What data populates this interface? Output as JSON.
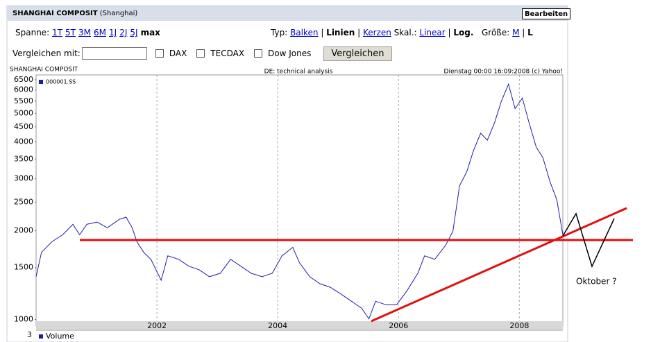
{
  "header": {
    "title": "SHANGHAI COMPOSIT",
    "exchange": "(Shanghai)",
    "edit_button": "Bearbeiten"
  },
  "controls": {
    "range_label": "Spanne:",
    "ranges": [
      "1T",
      "5T",
      "3M",
      "6M",
      "1J",
      "2J",
      "5J"
    ],
    "range_active": "max",
    "type_label": "Typ:",
    "types": [
      "Balken",
      "Linien",
      "Kerzen"
    ],
    "type_active": 1,
    "scale_label": "Skal.:",
    "scales": [
      "Linear",
      "Log."
    ],
    "scale_active": 1,
    "size_label": "Größe:",
    "sizes": [
      "M",
      "L"
    ],
    "size_active": 1,
    "compare_label": "Vergleichen mit:",
    "compare_options": [
      "DAX",
      "TECDAX",
      "Dow Jones"
    ],
    "compare_button": "Vergleichen"
  },
  "chart_data": {
    "type": "line",
    "title": "SHANGHAI COMPOSIT",
    "subtitle": "DE: technical analysis",
    "source": "Dienstag 00:00 16:09:2008 (c) Yahoo!",
    "log_y": true,
    "grid": true,
    "legend": "top-left",
    "xlim": [
      2000,
      2008.72
    ],
    "xticks": [
      2002,
      2004,
      2006,
      2008
    ],
    "ylim": [
      950,
      6750
    ],
    "yticks": [
      1000,
      1500,
      2000,
      2500,
      3000,
      3500,
      4000,
      4500,
      5000,
      5500,
      6000,
      6500
    ],
    "x": [
      2000.0,
      2000.09,
      2000.26,
      2000.44,
      2000.61,
      2000.72,
      2000.84,
      2001.01,
      2001.18,
      2001.38,
      2001.49,
      2001.59,
      2001.67,
      2001.78,
      2001.9,
      2002.07,
      2002.18,
      2002.36,
      2002.53,
      2002.7,
      2002.87,
      2003.05,
      2003.22,
      2003.39,
      2003.56,
      2003.74,
      2003.91,
      2004.07,
      2004.25,
      2004.36,
      2004.53,
      2004.7,
      2004.87,
      2005.05,
      2005.22,
      2005.39,
      2005.51,
      2005.62,
      2005.79,
      2005.97,
      2006.14,
      2006.32,
      2006.43,
      2006.6,
      2006.78,
      2006.9,
      2007.01,
      2007.13,
      2007.24,
      2007.36,
      2007.47,
      2007.59,
      2007.7,
      2007.82,
      2007.93,
      2008.05,
      2008.16,
      2008.28,
      2008.39,
      2008.51,
      2008.62,
      2008.72
    ],
    "series": [
      {
        "name": "000001.SS",
        "color": "#1c1ca8",
        "values": [
          1396,
          1690,
          1834,
          1938,
          2103,
          1938,
          2103,
          2138,
          2047,
          2186,
          2223,
          2047,
          1834,
          1690,
          1600,
          1358,
          1644,
          1600,
          1515,
          1474,
          1396,
          1435,
          1600,
          1515,
          1435,
          1396,
          1435,
          1644,
          1757,
          1557,
          1396,
          1322,
          1286,
          1218,
          1153,
          1091,
          1005,
          1153,
          1122,
          1122,
          1251,
          1435,
          1644,
          1600,
          1786,
          1991,
          2841,
          3171,
          3736,
          4283,
          4055,
          4647,
          5480,
          6281,
          5188,
          5633,
          4647,
          3840,
          3538,
          2922,
          2547,
          1938
        ]
      }
    ],
    "annotation": "Oktober ?",
    "volume_tick": "3",
    "volume_legend": "Volume"
  }
}
